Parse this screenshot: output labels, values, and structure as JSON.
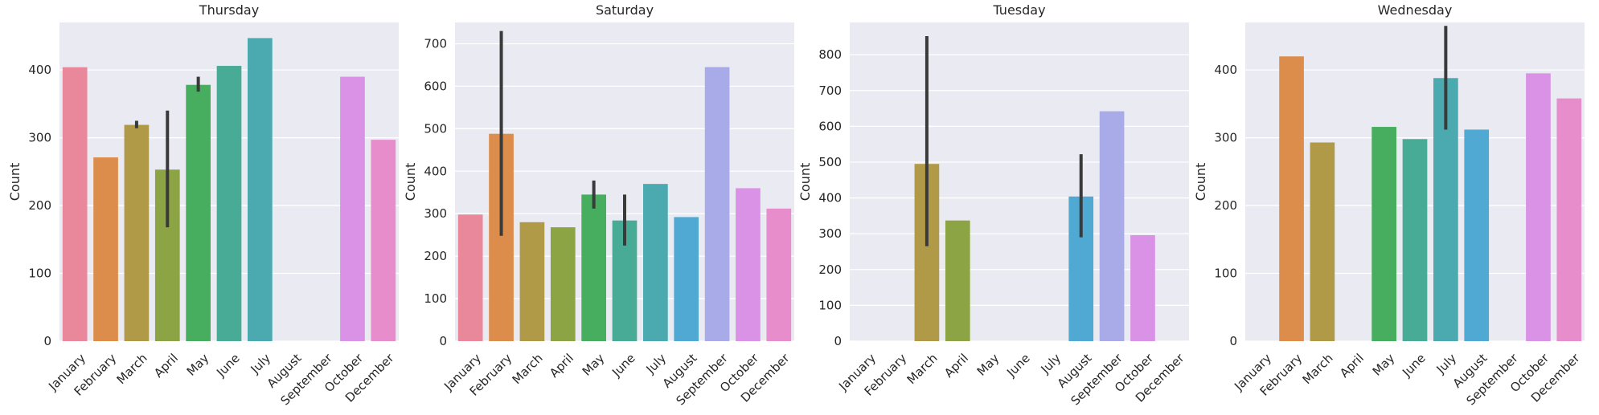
{
  "chart_data": [
    {
      "type": "bar",
      "title": "Thursday",
      "xlabel": "",
      "ylabel": "Count",
      "ylim": [
        0,
        470
      ],
      "yticks": [
        0,
        100,
        200,
        300,
        400
      ],
      "grid": true,
      "categories": [
        "January",
        "February",
        "March",
        "April",
        "May",
        "June",
        "July",
        "August",
        "September",
        "October",
        "December"
      ],
      "values": [
        404,
        271,
        319,
        253,
        378,
        406,
        447,
        null,
        null,
        390,
        297
      ],
      "error_bars": [
        null,
        null,
        [
          314,
          325
        ],
        [
          168,
          340
        ],
        [
          368,
          390
        ],
        null,
        null,
        null,
        null,
        null,
        null
      ]
    },
    {
      "type": "bar",
      "title": "Saturday",
      "xlabel": "",
      "ylabel": "Count",
      "ylim": [
        0,
        750
      ],
      "yticks": [
        0,
        100,
        200,
        300,
        400,
        500,
        600,
        700
      ],
      "grid": true,
      "categories": [
        "January",
        "February",
        "March",
        "April",
        "May",
        "June",
        "July",
        "August",
        "September",
        "October",
        "December"
      ],
      "values": [
        298,
        488,
        280,
        268,
        345,
        284,
        370,
        292,
        645,
        360,
        312
      ],
      "error_bars": [
        null,
        [
          248,
          730
        ],
        null,
        null,
        [
          312,
          378
        ],
        [
          225,
          345
        ],
        null,
        null,
        null,
        null,
        null
      ]
    },
    {
      "type": "bar",
      "title": "Tuesday",
      "xlabel": "",
      "ylabel": "Count",
      "ylim": [
        0,
        890
      ],
      "yticks": [
        0,
        100,
        200,
        300,
        400,
        500,
        600,
        700,
        800
      ],
      "grid": true,
      "categories": [
        "January",
        "February",
        "March",
        "April",
        "May",
        "June",
        "July",
        "August",
        "September",
        "October",
        "December"
      ],
      "values": [
        null,
        null,
        495,
        337,
        null,
        null,
        null,
        404,
        642,
        296,
        null
      ],
      "error_bars": [
        null,
        null,
        [
          265,
          852
        ],
        null,
        null,
        null,
        null,
        [
          290,
          522
        ],
        null,
        null,
        null
      ]
    },
    {
      "type": "bar",
      "title": "Wednesday",
      "xlabel": "",
      "ylabel": "Count",
      "ylim": [
        0,
        470
      ],
      "yticks": [
        0,
        100,
        200,
        300,
        400
      ],
      "grid": true,
      "categories": [
        "January",
        "February",
        "March",
        "April",
        "May",
        "June",
        "July",
        "August",
        "September",
        "October",
        "December"
      ],
      "values": [
        null,
        420,
        293,
        null,
        316,
        298,
        388,
        312,
        null,
        395,
        358
      ],
      "error_bars": [
        null,
        null,
        null,
        null,
        null,
        null,
        [
          312,
          465
        ],
        null,
        null,
        null,
        null
      ]
    }
  ],
  "palette": [
    "#e8889a",
    "#dd8d4b",
    "#b19a47",
    "#8da444",
    "#46ae5e",
    "#48ab95",
    "#4aaaaf",
    "#50a9d3",
    "#a9abe9",
    "#d992e5",
    "#e78dcc"
  ],
  "style": {
    "background": "#eaeaf2",
    "grid": "#ffffff",
    "errorbar": "#3a3a3a"
  }
}
